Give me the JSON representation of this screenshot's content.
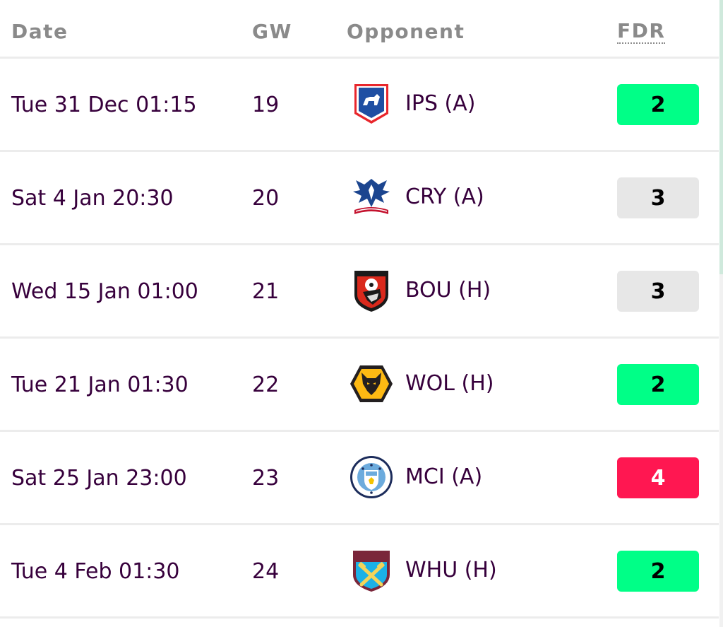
{
  "header": {
    "date_label": "Date",
    "gw_label": "GW",
    "opponent_label": "Opponent",
    "fdr_label": "FDR"
  },
  "fixtures": [
    {
      "date": "Tue 31 Dec 01:15",
      "gw": "19",
      "opponent": "IPS (A)",
      "fdr": "2",
      "fdr_color": "#00ff87",
      "fdr_text_color": "#000000",
      "crest_icon": "ipswich-crest-icon"
    },
    {
      "date": "Sat 4 Jan 20:30",
      "gw": "20",
      "opponent": "CRY (A)",
      "fdr": "3",
      "fdr_color": "#e7e7e7",
      "fdr_text_color": "#000000",
      "crest_icon": "crystal-palace-crest-icon"
    },
    {
      "date": "Wed 15 Jan 01:00",
      "gw": "21",
      "opponent": "BOU (H)",
      "fdr": "3",
      "fdr_color": "#e7e7e7",
      "fdr_text_color": "#000000",
      "crest_icon": "bournemouth-crest-icon"
    },
    {
      "date": "Tue 21 Jan 01:30",
      "gw": "22",
      "opponent": "WOL (H)",
      "fdr": "2",
      "fdr_color": "#00ff87",
      "fdr_text_color": "#000000",
      "crest_icon": "wolves-crest-icon"
    },
    {
      "date": "Sat 25 Jan 23:00",
      "gw": "23",
      "opponent": "MCI (A)",
      "fdr": "4",
      "fdr_color": "#ff1751",
      "fdr_text_color": "#ffffff",
      "crest_icon": "man-city-crest-icon"
    },
    {
      "date": "Tue 4 Feb 01:30",
      "gw": "24",
      "opponent": "WHU (H)",
      "fdr": "2",
      "fdr_color": "#00ff87",
      "fdr_text_color": "#000000",
      "crest_icon": "west-ham-crest-icon"
    }
  ]
}
